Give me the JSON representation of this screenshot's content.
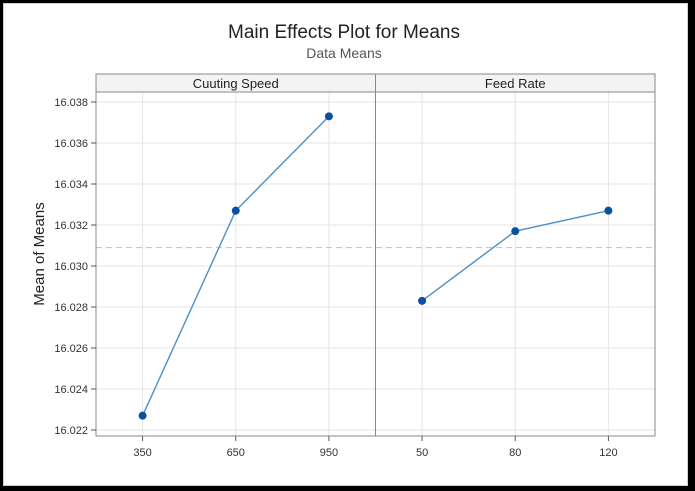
{
  "chart_data": {
    "type": "line",
    "title": "Main Effects Plot for Means",
    "subtitle": "Data Means",
    "ylabel": "Mean of Means",
    "ylim": [
      16.022,
      16.038
    ],
    "yticks": [
      "16.022",
      "16.024",
      "16.026",
      "16.028",
      "16.030",
      "16.032",
      "16.034",
      "16.036",
      "16.038"
    ],
    "reference_line": 16.0309,
    "panels": [
      {
        "name": "Cuuting Speed",
        "categories": [
          "350",
          "650",
          "950"
        ],
        "values": [
          16.0227,
          16.0327,
          16.0373
        ]
      },
      {
        "name": "Feed Rate",
        "categories": [
          "50",
          "80",
          "120"
        ],
        "values": [
          16.0283,
          16.0317,
          16.0327
        ]
      }
    ],
    "colors": {
      "line": "#4a90c8",
      "marker": "#0b4fa0",
      "grid": "#e6e6e6",
      "reference": "#c8c8c8"
    }
  }
}
